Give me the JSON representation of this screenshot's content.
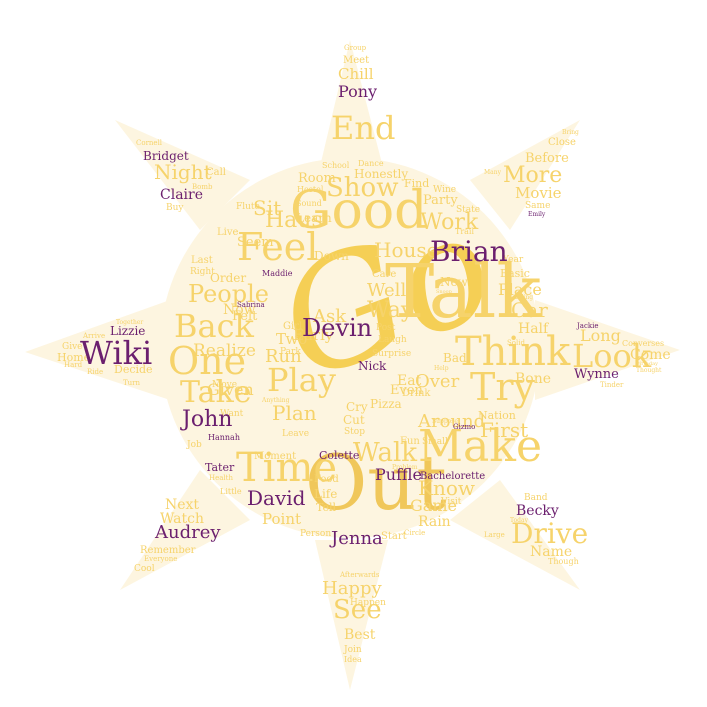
{
  "colors": {
    "gold": "#f6d36b",
    "gold_dark": "#f0c75a",
    "purple": "#6b1f6e",
    "sun_fill": "#fdf5e0",
    "pale": "#f2dc9a"
  },
  "words": {
    "go": "Go",
    "talk": "Talk",
    "out": "Out",
    "good": "Good",
    "make": "Make",
    "think": "Think",
    "try": "Try",
    "feel": "Feel",
    "time": "Time",
    "look": "Look",
    "play": "Play",
    "one": "One",
    "back": "Back",
    "take": "Take",
    "walk": "Walk",
    "show": "Show",
    "people": "People",
    "brian": "Brian",
    "devin": "Devin",
    "wiki": "Wiki",
    "john": "John",
    "david": "David",
    "jenna": "Jenna",
    "audrey": "Audrey",
    "puffle": "Puffle",
    "becky": "Becky",
    "wynne": "Wynne",
    "claire": "Claire",
    "bridget": "Bridget",
    "lizzie": "Lizzie",
    "nick": "Nick",
    "pony": "Pony",
    "colette": "Colette",
    "tater": "Tater",
    "bachelorette": "Bachelorette",
    "hannah": "Hannah",
    "maddie": "Maddie",
    "sabrina": "Sabrina",
    "gizmo": "Gizmo",
    "jackie": "Jackie",
    "end": "End",
    "chill": "Chill",
    "meet": "Meet",
    "group": "Group",
    "night": "Night",
    "call": "Call",
    "cornell": "Cornell",
    "bomb": "Bomb",
    "buy": "Buy",
    "before": "Before",
    "more": "More",
    "close": "Close",
    "movie": "Movie",
    "same": "Same",
    "emily": "Emily",
    "many": "Many",
    "bring": "Bring",
    "drive": "Drive",
    "name": "Name",
    "band": "Band",
    "though": "Though",
    "large": "Large",
    "today": "Today",
    "next": "Next",
    "watch": "Watch",
    "remember": "Remember",
    "cool": "Cool",
    "everyone": "Everyone",
    "see": "See",
    "happy": "Happy",
    "best": "Best",
    "join": "Join",
    "idea": "Idea",
    "happen": "Happen",
    "afterwards": "Afterwards",
    "long": "Long",
    "come": "Come",
    "converses": "Converses",
    "tinder": "Tinder",
    "birthday": "Birthday",
    "thought": "Thought",
    "give": "Give",
    "home": "Home",
    "decide": "Decide",
    "ride": "Ride",
    "hard": "Hard",
    "turn": "Turn",
    "arrive": "Arrive",
    "together": "Together",
    "haus": "Haus",
    "sit": "Sit",
    "seem": "Seem",
    "live": "Live",
    "flute": "Flute",
    "last": "Last",
    "right": "Right",
    "order": "Order",
    "now": "Now",
    "felt": "Felt",
    "realize": "Realize",
    "given": "Given",
    "want": "Want",
    "move": "Move",
    "job": "Job",
    "moment": "Moment",
    "little": "Little",
    "point": "Point",
    "health": "Health",
    "room": "Room",
    "learn": "Learn",
    "sound": "Sound",
    "honestly": "Honestly",
    "find": "Find",
    "dance": "Dance",
    "school": "School",
    "hostel": "Hostel",
    "party": "Party",
    "work": "Work",
    "house": "House",
    "wine": "Wine",
    "state": "State",
    "trail": "Trail",
    "way": "Way",
    "well": "Well",
    "new": "New",
    "care": "Care",
    "ask": "Ask",
    "early": "Early",
    "run": "Run",
    "plan": "Plan",
    "girl": "Girl",
    "two": "Two",
    "park": "Park",
    "cry": "Cry",
    "cut": "Cut",
    "stop": "Stop",
    "fun": "Fun",
    "eat": "Eat",
    "even": "Even",
    "drink": "Drink",
    "pizza": "Pizza",
    "surprise": "Surprise",
    "laugh": "Laugh",
    "post": "Post",
    "bad": "Bad",
    "over": "Over",
    "around": "Around",
    "first": "First",
    "nation": "Nation",
    "bone": "Bone",
    "car": "Car",
    "half": "Half",
    "place": "Place",
    "basic": "Basic",
    "year": "Year",
    "know": "Know",
    "game": "Game",
    "rain": "Rain",
    "visit": "Visit",
    "food": "Food",
    "life": "Life",
    "tell": "Tell",
    "person": "Person",
    "start": "Start",
    "circle": "Circle",
    "small": "Small",
    "leave": "Leave",
    "down": "Down",
    "doing": "Doing",
    "solid": "Solid",
    "help": "Help",
    "anything": "Anything",
    "problem": "Problem",
    "suppose": "Suppose",
    "snoop": "Snoop"
  }
}
